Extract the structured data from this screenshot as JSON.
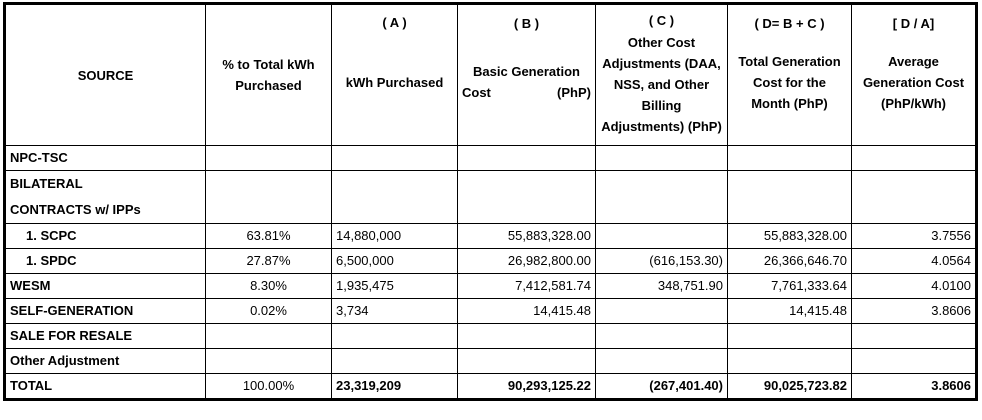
{
  "header": {
    "source": "SOURCE",
    "pct": "% to Total kWh Purchased",
    "kwh_letter": "( A )",
    "kwh": "kWh Purchased",
    "basic_letter": "( B )",
    "basic_left": "Basic Generation Cost",
    "basic_right": "(PhP)",
    "other_letter": "( C )",
    "other": "Other Cost Adjustments (DAA, NSS, and Other Billing Adjustments) (PhP)",
    "total_letter": "( D= B + C )",
    "total": "Total Generation Cost for the Month (PhP)",
    "avg_letter": "[ D / A]",
    "avg": "Average Generation Cost (PhP/kWh)"
  },
  "rows": {
    "npc": {
      "source": "NPC-TSC"
    },
    "bilateral": {
      "line1": "BILATERAL",
      "line2": "CONTRACTS w/ IPPs"
    },
    "scpc": {
      "source": "1.  SCPC",
      "pct": "63.81%",
      "kwh": "14,880,000",
      "basic": "55,883,328.00",
      "other": "",
      "total": "55,883,328.00",
      "avg": "3.7556"
    },
    "spdc": {
      "source": "1.  SPDC",
      "pct": "27.87%",
      "kwh": "6,500,000",
      "basic": "26,982,800.00",
      "other": "(616,153.30)",
      "total": "26,366,646.70",
      "avg": "4.0564"
    },
    "wesm": {
      "source": "WESM",
      "pct": "8.30%",
      "kwh": "1,935,475",
      "basic": "7,412,581.74",
      "other": "348,751.90",
      "total": "7,761,333.64",
      "avg": "4.0100"
    },
    "selfgen": {
      "source": "SELF-GENERATION",
      "pct": "0.02%",
      "kwh": "3,734",
      "basic": "14,415.48",
      "other": "",
      "total": "14,415.48",
      "avg": "3.8606"
    },
    "resale": {
      "source": "SALE FOR RESALE"
    },
    "otheradj": {
      "source": "Other Adjustment"
    },
    "total": {
      "source": "TOTAL",
      "pct": "100.00%",
      "kwh": "23,319,209",
      "basic": "90,293,125.22",
      "other": "(267,401.40)",
      "total": "90,025,723.82",
      "avg": "3.8606"
    }
  }
}
